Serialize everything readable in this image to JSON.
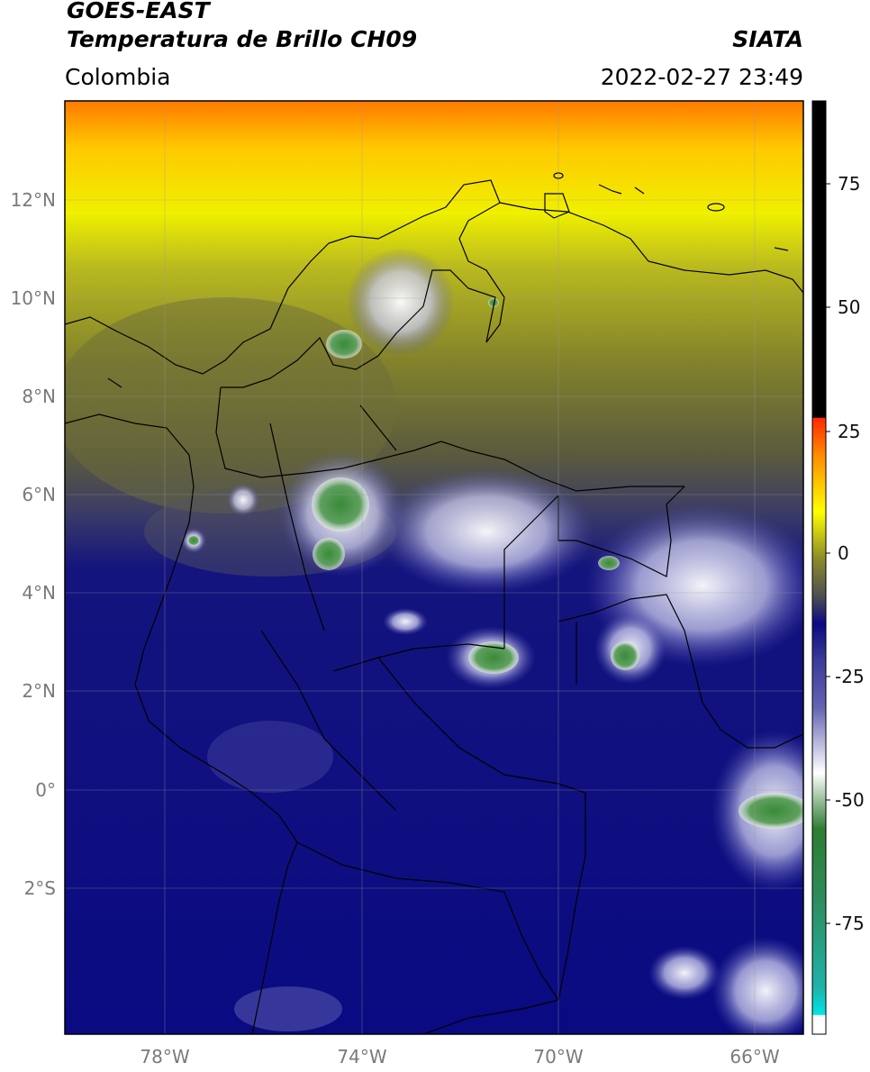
{
  "header": {
    "title_line1": "GOES-EAST",
    "title_line2": "Temperatura de Brillo CH09",
    "region": "Colombia",
    "source": "SIATA",
    "timestamp": "2022-02-27 23:49"
  },
  "map": {
    "lon_labels": [
      "78°W",
      "74°W",
      "70°W",
      "66°W"
    ],
    "lat_labels": [
      "12°N",
      "10°N",
      "8°N",
      "6°N",
      "4°N",
      "2°N",
      "0°",
      "2°S"
    ]
  },
  "colorbar": {
    "tick_labels": [
      "75",
      "50",
      "25",
      "0",
      "-25",
      "-50",
      "-75"
    ],
    "colors": {
      "black": "#000000",
      "red": "#ff2a00",
      "orange": "#ff8c00",
      "yellow": "#ffff00",
      "olive": "#8c8c28",
      "gray": "#505050",
      "navy": "#0a0a82",
      "blue": "#3c3c9a",
      "white": "#ffffff",
      "green": "#2e7d32",
      "teal": "#20b2aa",
      "cyan": "#00e5e5"
    }
  }
}
